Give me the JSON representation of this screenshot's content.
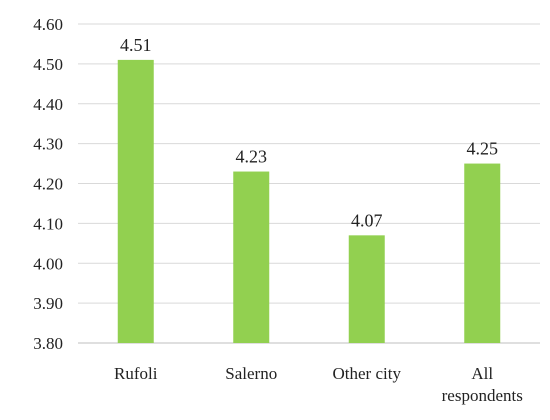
{
  "chart_data": {
    "type": "bar",
    "categories": [
      [
        "Rufoli"
      ],
      [
        "Salerno"
      ],
      [
        "Other city"
      ],
      [
        "All",
        "respondents"
      ]
    ],
    "values": [
      4.51,
      4.23,
      4.07,
      4.25
    ],
    "data_labels": [
      "4.51",
      "4.23",
      "4.07",
      "4.25"
    ],
    "yticks": [
      "3.80",
      "3.90",
      "4.00",
      "4.10",
      "4.20",
      "4.30",
      "4.40",
      "4.50",
      "4.60"
    ],
    "ylim": [
      3.8,
      4.6
    ],
    "grid": true,
    "legend": "none",
    "bar_color": "#92d050"
  }
}
